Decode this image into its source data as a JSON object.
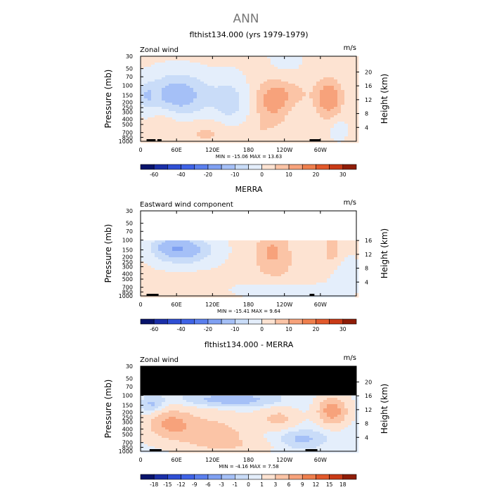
{
  "figure_title": "ANN",
  "chart_data": [
    {
      "type": "heatmap",
      "title": "flthist134.000 (yrs 1979-1979)",
      "left_label": "Zonal wind",
      "right_label": "m/s",
      "ylabel": "Pressure (mb)",
      "y2label": "Height (km)",
      "xticks": [
        "0",
        "60E",
        "120E",
        "180",
        "120W",
        "60W"
      ],
      "xtick_lon": [
        0,
        60,
        120,
        180,
        240,
        300
      ],
      "xlim": [
        0,
        360
      ],
      "yticks": [
        "30",
        "50",
        "70",
        "100",
        "150",
        "200",
        "250",
        "300",
        "400",
        "500",
        "700",
        "850",
        "1000"
      ],
      "ytick_p": [
        30,
        50,
        70,
        100,
        150,
        200,
        250,
        300,
        400,
        500,
        700,
        850,
        1000
      ],
      "ylim": [
        30,
        1000
      ],
      "height_ticks": [
        "4",
        "8",
        "12",
        "16",
        "20"
      ],
      "height_km": [
        4,
        8,
        12,
        16,
        20
      ],
      "data_top_p": 30,
      "stats": "MIN = -15.06   MAX =  13.63",
      "colorbar": {
        "labels": [
          "-60",
          "-40",
          "-20",
          "-10",
          "0",
          "10",
          "20",
          "30"
        ],
        "bounds": [
          -70,
          -60,
          -50,
          -40,
          -30,
          -20,
          -15,
          -10,
          -5,
          0,
          5,
          10,
          15,
          20,
          25,
          30,
          35
        ],
        "colors": [
          "#08136b",
          "#1a2fa8",
          "#2f4fd4",
          "#3f63e6",
          "#5a7fee",
          "#7fa0f2",
          "#a5c0f7",
          "#c9dcf8",
          "#e4eefb",
          "#fde3d2",
          "#fbc4a6",
          "#f7a27b",
          "#ef7f4d",
          "#e2592b",
          "#c93a16",
          "#8f1d08"
        ]
      },
      "features": [
        {
          "lon": 62,
          "p": 150,
          "wl": 55,
          "wp": 0.9,
          "a": -15
        },
        {
          "lon": 150,
          "p": 200,
          "wl": 30,
          "wp": 1.0,
          "a": -8
        },
        {
          "lon": 10,
          "p": 150,
          "wl": 12,
          "wp": 0.5,
          "a": -6
        },
        {
          "lon": 220,
          "p": 200,
          "wl": 28,
          "wp": 0.9,
          "a": 11
        },
        {
          "lon": 314,
          "p": 170,
          "wl": 22,
          "wp": 0.8,
          "a": 13.5
        },
        {
          "lon": 250,
          "p": 140,
          "wl": 35,
          "wp": 0.5,
          "a": 5
        },
        {
          "lon": 110,
          "p": 700,
          "wl": 40,
          "wp": 0.6,
          "a": 5
        },
        {
          "lon": 40,
          "p": 400,
          "wl": 25,
          "wp": 0.6,
          "a": 4
        },
        {
          "lon": 190,
          "p": 700,
          "wl": 30,
          "wp": 0.5,
          "a": 3
        },
        {
          "lon": 330,
          "p": 600,
          "wl": 15,
          "wp": 0.5,
          "a": -4
        },
        {
          "lon": 240,
          "p": 35,
          "wl": 30,
          "wp": 0.6,
          "a": -3
        }
      ],
      "base": 1.2,
      "topo": [
        [
          10,
          25
        ],
        [
          28,
          35
        ],
        [
          282,
          300
        ]
      ]
    },
    {
      "type": "heatmap",
      "title": "MERRA",
      "left_label": "Eastward wind component",
      "right_label": "m/s",
      "ylabel": "Pressure (mb)",
      "y2label": "Height (km)",
      "xticks": [
        "0",
        "60E",
        "120E",
        "180",
        "120W",
        "60W"
      ],
      "xtick_lon": [
        0,
        60,
        120,
        180,
        240,
        300
      ],
      "xlim": [
        0,
        360
      ],
      "yticks": [
        "30",
        "50",
        "70",
        "100",
        "150",
        "200",
        "250",
        "300",
        "400",
        "500",
        "700",
        "850",
        "1000"
      ],
      "ytick_p": [
        30,
        50,
        70,
        100,
        150,
        200,
        250,
        300,
        400,
        500,
        700,
        850,
        1000
      ],
      "ylim": [
        30,
        1000
      ],
      "height_ticks": [
        "4",
        "8",
        "12",
        "16"
      ],
      "height_km": [
        4,
        8,
        12,
        16
      ],
      "data_top_p": 100,
      "stats": "MIN = -15.41   MAX =   9.64",
      "colorbar": {
        "labels": [
          "-60",
          "-40",
          "-20",
          "-10",
          "0",
          "10",
          "20",
          "30"
        ],
        "bounds": [
          -70,
          -60,
          -50,
          -40,
          -30,
          -20,
          -15,
          -10,
          -5,
          0,
          5,
          10,
          15,
          20,
          25,
          30,
          35
        ],
        "colors": [
          "#08136b",
          "#1a2fa8",
          "#2f4fd4",
          "#3f63e6",
          "#5a7fee",
          "#7fa0f2",
          "#a5c0f7",
          "#c9dcf8",
          "#e4eefb",
          "#fde3d2",
          "#fbc4a6",
          "#f7a27b",
          "#ef7f4d",
          "#e2592b",
          "#c93a16",
          "#8f1d08"
        ]
      },
      "features": [
        {
          "lon": 75,
          "p": 150,
          "wl": 45,
          "wp": 0.6,
          "a": -14
        },
        {
          "lon": 40,
          "p": 130,
          "wl": 30,
          "wp": 0.5,
          "a": -6
        },
        {
          "lon": 220,
          "p": 160,
          "wl": 30,
          "wp": 0.8,
          "a": 10
        },
        {
          "lon": 320,
          "p": 150,
          "wl": 15,
          "wp": 0.6,
          "a": 8
        },
        {
          "lon": 240,
          "p": 450,
          "wl": 60,
          "wp": 0.7,
          "a": 3
        },
        {
          "lon": 80,
          "p": 650,
          "wl": 40,
          "wp": 0.5,
          "a": 3
        },
        {
          "lon": 240,
          "p": 750,
          "wl": 80,
          "wp": 0.4,
          "a": -4
        },
        {
          "lon": 340,
          "p": 400,
          "wl": 25,
          "wp": 0.8,
          "a": -3
        }
      ],
      "base": 0.8,
      "topo": [
        [
          10,
          30
        ],
        [
          282,
          290
        ]
      ]
    },
    {
      "type": "heatmap",
      "title": "flthist134.000 - MERRA",
      "left_label": "Zonal wind",
      "right_label": "m/s",
      "ylabel": "Pressure (mb)",
      "y2label": "Height (km)",
      "xticks": [
        "0",
        "60E",
        "120E",
        "180",
        "120W",
        "60W"
      ],
      "xtick_lon": [
        0,
        60,
        120,
        180,
        240,
        300
      ],
      "xlim": [
        0,
        360
      ],
      "yticks": [
        "30",
        "50",
        "70",
        "100",
        "150",
        "200",
        "250",
        "300",
        "400",
        "500",
        "700",
        "850",
        "1000"
      ],
      "ytick_p": [
        30,
        50,
        70,
        100,
        150,
        200,
        250,
        300,
        400,
        500,
        700,
        850,
        1000
      ],
      "ylim": [
        30,
        1000
      ],
      "height_ticks": [
        "4",
        "8",
        "12",
        "16",
        "20"
      ],
      "height_km": [
        4,
        8,
        12,
        16,
        20
      ],
      "data_top_p": 100,
      "masked_top": true,
      "stats": "MIN =  -4.16   MAX =   7.58",
      "colorbar": {
        "labels": [
          "-18",
          "-15",
          "-12",
          "-9",
          "-6",
          "-3",
          "-1",
          "0",
          "1",
          "3",
          "6",
          "9",
          "12",
          "15",
          "18"
        ],
        "bounds": [
          -21,
          -18,
          -15,
          -12,
          -9,
          -6,
          -3,
          -1,
          0,
          1,
          3,
          6,
          9,
          12,
          15,
          18,
          21
        ],
        "colors": [
          "#08136b",
          "#1a2fa8",
          "#2f4fd4",
          "#3f63e6",
          "#5a7fee",
          "#7fa0f2",
          "#a5c0f7",
          "#c9dcf8",
          "#e4eefb",
          "#fde3d2",
          "#fbc4a6",
          "#f7a27b",
          "#ef7f4d",
          "#e2592b",
          "#c93a16",
          "#8f1d08"
        ]
      },
      "features": [
        {
          "lon": 50,
          "p": 320,
          "wl": 30,
          "wp": 0.5,
          "a": 5
        },
        {
          "lon": 90,
          "p": 360,
          "wl": 70,
          "wp": 0.7,
          "a": 2.5
        },
        {
          "lon": 320,
          "p": 190,
          "wl": 22,
          "wp": 0.5,
          "a": 7.5
        },
        {
          "lon": 230,
          "p": 260,
          "wl": 30,
          "wp": 0.4,
          "a": 3
        },
        {
          "lon": 150,
          "p": 120,
          "wl": 80,
          "wp": 0.3,
          "a": -2.5
        },
        {
          "lon": 20,
          "p": 150,
          "wl": 20,
          "wp": 0.4,
          "a": -2
        },
        {
          "lon": 270,
          "p": 600,
          "wl": 40,
          "wp": 0.4,
          "a": -2
        },
        {
          "lon": 150,
          "p": 800,
          "wl": 60,
          "wp": 0.3,
          "a": 2
        },
        {
          "lon": 120,
          "p": 500,
          "wl": 50,
          "wp": 0.4,
          "a": 3
        }
      ],
      "base": 0.7,
      "topo": [
        [
          15,
          35
        ],
        [
          275,
          295
        ]
      ]
    }
  ]
}
